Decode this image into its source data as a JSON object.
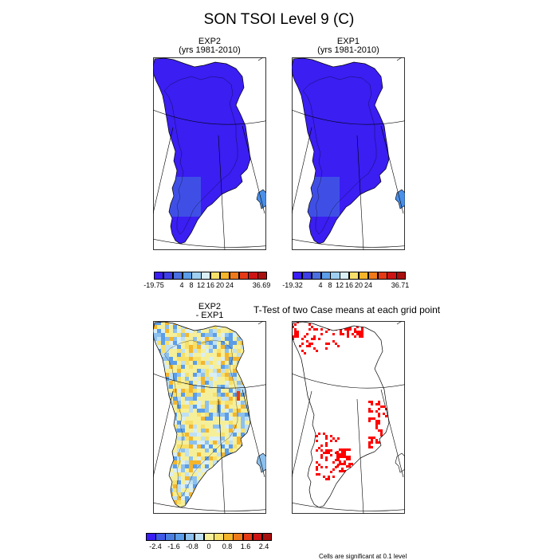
{
  "title": "SON TSOI Level 9 (C)",
  "panels": [
    {
      "id": "exp2",
      "title_line1": "EXP2",
      "title_line2": "(yrs 1981-2010)",
      "fill": "blue"
    },
    {
      "id": "exp1",
      "title_line1": "EXP1",
      "title_line2": "(yrs 1981-2010)",
      "fill": "blue"
    },
    {
      "id": "diff",
      "title_line1": "EXP2",
      "title_line2": "- EXP1",
      "fill": "diff"
    },
    {
      "id": "ttest",
      "title": "T-Test of two Case means at each grid point",
      "fill": "ttest"
    }
  ],
  "colorbars": {
    "exp2": {
      "colors": [
        "#3a1ef2",
        "#3f3fe8",
        "#4a6fe0",
        "#5b9de8",
        "#9fcff0",
        "#d9eef5",
        "#f7e06a",
        "#f5b52a",
        "#ef7a1a",
        "#e53a16",
        "#cc1414",
        "#a81010"
      ],
      "labels": [
        "-19.75",
        "4",
        "8",
        "12",
        "16",
        "20",
        "24",
        "36.69"
      ]
    },
    "exp1": {
      "colors": [
        "#3a1ef2",
        "#3f3fe8",
        "#4a6fe0",
        "#5b9de8",
        "#9fcff0",
        "#d9eef5",
        "#f7e06a",
        "#f5b52a",
        "#ef7a1a",
        "#e53a16",
        "#cc1414",
        "#a81010"
      ],
      "labels": [
        "-19.32",
        "4",
        "8",
        "12",
        "16",
        "20",
        "24",
        "36.71"
      ]
    },
    "diff": {
      "colors": [
        "#3a1ef2",
        "#3f5ae6",
        "#4a7fe0",
        "#5b9de8",
        "#8cc0ee",
        "#bfe0f3",
        "#f6ef9a",
        "#f7e06a",
        "#f5b52a",
        "#ef7a1a",
        "#e53a16",
        "#cc1414",
        "#a81010"
      ],
      "labels": [
        "-2.4",
        "-1.6",
        "-0.8",
        "0",
        "0.8",
        "1.6",
        "2.4"
      ]
    }
  },
  "footnote": "Cells are significant at 0.1 level"
}
